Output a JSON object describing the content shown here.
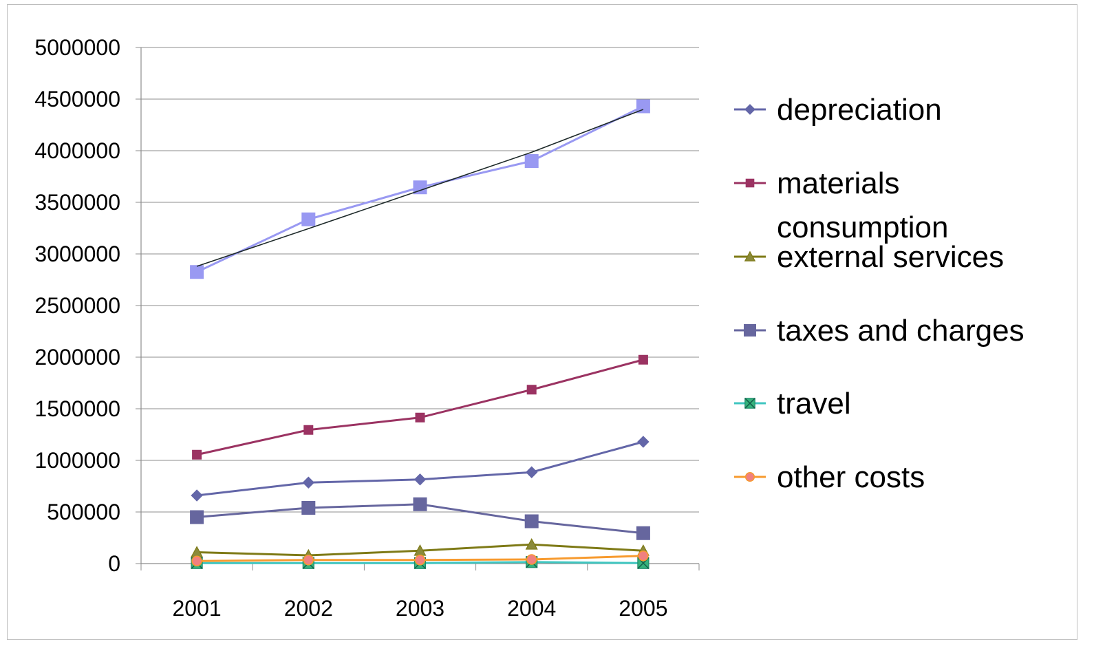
{
  "chart_data": {
    "type": "line",
    "title": "",
    "xlabel": "",
    "ylabel": "",
    "categories": [
      "2001",
      "2002",
      "2003",
      "2004",
      "2005"
    ],
    "ylim": [
      0,
      5000000
    ],
    "yticks": [
      "0",
      "500000",
      "1000000",
      "1500000",
      "2000000",
      "2500000",
      "3000000",
      "3500000",
      "4000000",
      "4500000",
      "5000000"
    ],
    "grid": "horizontal",
    "legend_position": "right",
    "series": [
      {
        "name": "depreciation",
        "values": [
          660000,
          785000,
          815000,
          885000,
          1180000
        ],
        "color": "#6366a8",
        "marker": "diamond",
        "legend": true
      },
      {
        "name": "materials consumption",
        "values": [
          1055000,
          1295000,
          1415000,
          1685000,
          1975000
        ],
        "color": "#9b3362",
        "marker": "square",
        "legend": true
      },
      {
        "name": "external services",
        "values": [
          110000,
          80000,
          125000,
          185000,
          125000
        ],
        "color": "#7e7a16",
        "marker": "triangle",
        "legend": true
      },
      {
        "name": "taxes and charges",
        "values": [
          450000,
          540000,
          575000,
          410000,
          295000
        ],
        "color": "#66669e",
        "marker": "bigsquare",
        "legend": true
      },
      {
        "name": "travel",
        "values": [
          5000,
          5000,
          5000,
          15000,
          5000
        ],
        "color": "#3fc6c0",
        "marker": "xsquare",
        "legend": true
      },
      {
        "name": "other costs",
        "values": [
          25000,
          35000,
          35000,
          40000,
          75000
        ],
        "color": "#f79a2e",
        "marker": "circle",
        "legend": true
      },
      {
        "name": "",
        "values": [
          2825000,
          3335000,
          3645000,
          3900000,
          4430000
        ],
        "color": "#9999f2",
        "marker": "bigsquare",
        "legend": false
      },
      {
        "name": "",
        "values": [
          2880000,
          3245000,
          3615000,
          3985000,
          4400000
        ],
        "color": "#1e2a2a",
        "marker": "none",
        "legend": false,
        "trendline": true
      }
    ]
  }
}
